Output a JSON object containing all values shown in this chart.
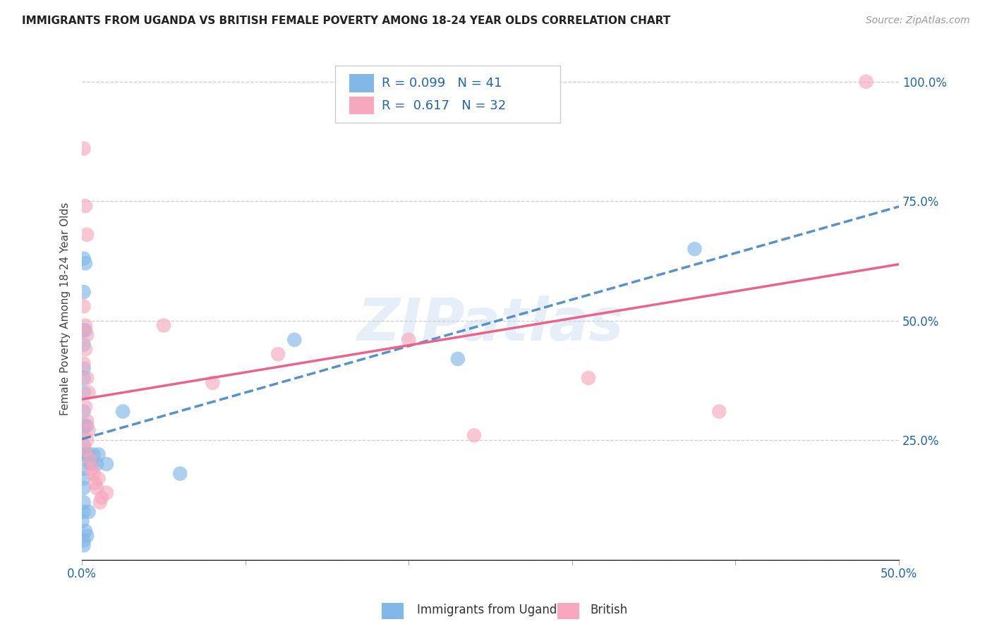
{
  "title": "IMMIGRANTS FROM UGANDA VS BRITISH FEMALE POVERTY AMONG 18-24 YEAR OLDS CORRELATION CHART",
  "source": "Source: ZipAtlas.com",
  "ylabel": "Female Poverty Among 18-24 Year Olds",
  "xlim": [
    0.0,
    0.5
  ],
  "ylim": [
    0.0,
    1.05
  ],
  "x_tick_positions": [
    0.0,
    0.1,
    0.2,
    0.3,
    0.4,
    0.5
  ],
  "x_tick_labels": [
    "0.0%",
    "",
    "",
    "",
    "",
    "50.0%"
  ],
  "y_tick_positions": [
    0.0,
    0.25,
    0.5,
    0.75,
    1.0
  ],
  "y_tick_labels": [
    "",
    "25.0%",
    "50.0%",
    "75.0%",
    "100.0%"
  ],
  "watermark": "ZIPatlas",
  "blue_color": "#82b8e8",
  "pink_color": "#f7a8be",
  "blue_line_color": "#3a7fc1",
  "pink_line_color": "#e8648a",
  "text_color": "#2166ac",
  "legend_text_color": "#2166ac",
  "blue_label": "Immigrants from Uganda",
  "pink_label": "British",
  "legend_r1": "R = 0.099",
  "legend_n1": "N = 41",
  "legend_r2": "R =  0.617",
  "legend_n2": "N = 32",
  "blue_scatter_x": [
    0.0,
    0.001,
    0.001,
    0.001,
    0.001,
    0.001,
    0.001,
    0.001,
    0.001,
    0.001,
    0.001,
    0.001,
    0.001,
    0.001,
    0.001,
    0.001,
    0.002,
    0.002,
    0.002,
    0.002,
    0.003,
    0.003,
    0.004,
    0.005,
    0.006,
    0.007,
    0.009,
    0.01,
    0.015,
    0.002,
    0.003,
    0.004,
    0.001,
    0.001,
    0.06,
    0.025,
    0.13,
    0.23,
    0.375,
    0.0,
    0.001
  ],
  "blue_scatter_y": [
    0.27,
    0.63,
    0.56,
    0.48,
    0.45,
    0.4,
    0.38,
    0.35,
    0.31,
    0.28,
    0.24,
    0.22,
    0.19,
    0.17,
    0.15,
    0.1,
    0.62,
    0.48,
    0.28,
    0.22,
    0.28,
    0.22,
    0.22,
    0.2,
    0.2,
    0.22,
    0.2,
    0.22,
    0.2,
    0.06,
    0.05,
    0.1,
    0.04,
    0.03,
    0.18,
    0.31,
    0.46,
    0.42,
    0.65,
    0.08,
    0.12
  ],
  "pink_scatter_x": [
    0.001,
    0.002,
    0.003,
    0.001,
    0.002,
    0.003,
    0.002,
    0.001,
    0.003,
    0.004,
    0.002,
    0.003,
    0.004,
    0.003,
    0.002,
    0.005,
    0.006,
    0.007,
    0.01,
    0.008,
    0.009,
    0.015,
    0.012,
    0.011,
    0.05,
    0.08,
    0.12,
    0.2,
    0.24,
    0.31,
    0.39,
    0.48
  ],
  "pink_scatter_y": [
    0.86,
    0.74,
    0.68,
    0.53,
    0.49,
    0.47,
    0.44,
    0.41,
    0.38,
    0.35,
    0.32,
    0.29,
    0.27,
    0.25,
    0.23,
    0.21,
    0.19,
    0.18,
    0.17,
    0.16,
    0.15,
    0.14,
    0.13,
    0.12,
    0.49,
    0.37,
    0.43,
    0.46,
    0.26,
    0.38,
    0.31,
    1.0
  ]
}
